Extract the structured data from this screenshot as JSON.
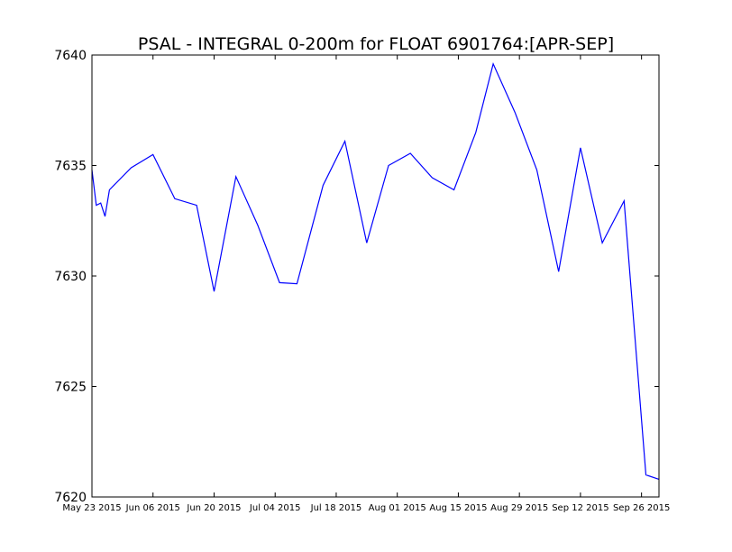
{
  "chart_data": {
    "type": "line",
    "title": "PSAL - INTEGRAL 0-200m for FLOAT 6901764:[APR-SEP]",
    "xlabel": "",
    "ylabel": "",
    "x_axis_type": "date",
    "xlim": [
      "2015-05-23",
      "2015-09-30"
    ],
    "ylim": [
      7620,
      7640
    ],
    "grid": false,
    "legend": "none",
    "x_ticks": [
      {
        "date": "2015-05-23",
        "label": "May 23 2015"
      },
      {
        "date": "2015-06-06",
        "label": "Jun 06 2015"
      },
      {
        "date": "2015-06-20",
        "label": "Jun 20 2015"
      },
      {
        "date": "2015-07-04",
        "label": "Jul 04 2015"
      },
      {
        "date": "2015-07-18",
        "label": "Jul 18 2015"
      },
      {
        "date": "2015-08-01",
        "label": "Aug 01 2015"
      },
      {
        "date": "2015-08-15",
        "label": "Aug 15 2015"
      },
      {
        "date": "2015-08-29",
        "label": "Aug 29 2015"
      },
      {
        "date": "2015-09-12",
        "label": "Sep 12 2015"
      },
      {
        "date": "2015-09-26",
        "label": "Sep 26 2015"
      }
    ],
    "y_ticks": [
      7620,
      7625,
      7630,
      7635,
      7640
    ],
    "series": [
      {
        "color": "#0000ff",
        "x": [
          "2015-05-23",
          "2015-05-24",
          "2015-05-25",
          "2015-05-26",
          "2015-05-27",
          "2015-06-01",
          "2015-06-06",
          "2015-06-11",
          "2015-06-16",
          "2015-06-20",
          "2015-06-25",
          "2015-06-30",
          "2015-07-05",
          "2015-07-09",
          "2015-07-15",
          "2015-07-20",
          "2015-07-25",
          "2015-07-30",
          "2015-08-04",
          "2015-08-09",
          "2015-08-14",
          "2015-08-19",
          "2015-08-23",
          "2015-08-28",
          "2015-09-02",
          "2015-09-07",
          "2015-09-12",
          "2015-09-17",
          "2015-09-22",
          "2015-09-27",
          "2015-09-30"
        ],
        "values": [
          7634.8,
          7633.2,
          7633.3,
          7632.7,
          7633.9,
          7634.9,
          7635.5,
          7633.5,
          7633.2,
          7629.3,
          7634.5,
          7632.3,
          7629.7,
          7629.65,
          7634.1,
          7636.1,
          7631.5,
          7635.0,
          7635.55,
          7634.45,
          7633.9,
          7636.5,
          7639.6,
          7637.4,
          7634.8,
          7630.2,
          7635.8,
          7631.5,
          7633.4,
          7621.0,
          7620.8
        ]
      }
    ]
  }
}
